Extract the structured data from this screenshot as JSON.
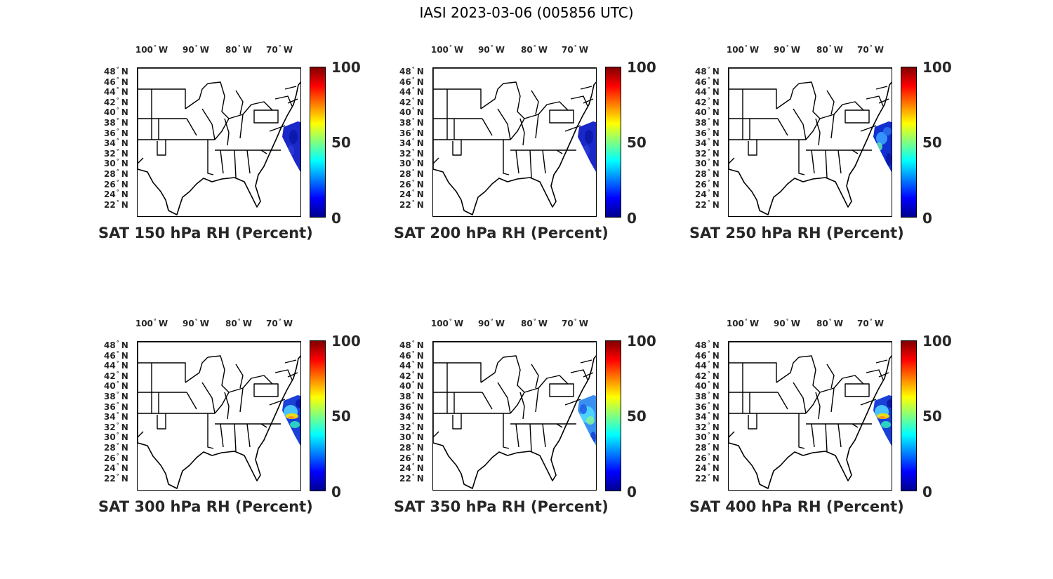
{
  "figure": {
    "title": "IASI 2023-03-06 (005856 UTC)"
  },
  "axes": {
    "lon_labels": [
      "100",
      "90",
      "80",
      "70"
    ],
    "lon_hemisphere": "W",
    "lat_labels": [
      "48",
      "46",
      "44",
      "42",
      "40",
      "38",
      "36",
      "34",
      "32",
      "30",
      "28",
      "26",
      "24",
      "22"
    ],
    "lat_hemisphere": "N",
    "degree_symbol": "°"
  },
  "colorbar": {
    "ticks": [
      "100",
      "50",
      "0"
    ],
    "range": [
      0,
      100
    ],
    "colormap": "jet"
  },
  "panels": [
    {
      "caption": "SAT 150 hPa RH (Percent)",
      "rh_pattern": "uniform-low"
    },
    {
      "caption": "SAT 200 hPa RH (Percent)",
      "rh_pattern": "uniform-low"
    },
    {
      "caption": "SAT 250 hPa RH (Percent)",
      "rh_pattern": "mixed"
    },
    {
      "caption": "SAT 300 hPa RH (Percent)",
      "rh_pattern": "moist-band"
    },
    {
      "caption": "SAT 350 hPa RH (Percent)",
      "rh_pattern": "mixed-moist"
    },
    {
      "caption": "SAT 400 hPa RH (Percent)",
      "rh_pattern": "moist-band"
    }
  ]
}
